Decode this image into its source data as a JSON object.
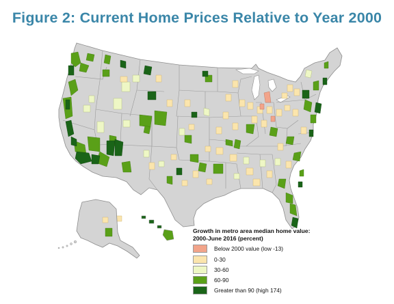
{
  "title": "Figure 2: Current Home Prices Relative to Year 2000",
  "legend": {
    "title_line1": "Growth in metro area median home value:",
    "title_line2": "2000-June 2016 (percent)",
    "items": [
      {
        "label": "Below 2000 value (low -13)",
        "color": "#f2a48a"
      },
      {
        "label": "0-30",
        "color": "#fbe5ad"
      },
      {
        "label": "30-60",
        "color": "#eef7c5"
      },
      {
        "label": "60-90",
        "color": "#5aa018"
      },
      {
        "label": "Greater than 90 (high 174)",
        "color": "#1a6418"
      }
    ]
  },
  "map": {
    "base_color": "#d4d4d4",
    "border_color": "#8c8c8c"
  }
}
